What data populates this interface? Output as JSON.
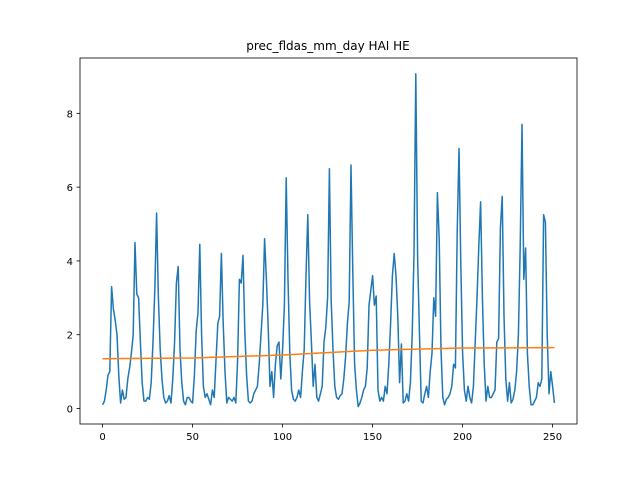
{
  "chart_data": {
    "type": "line",
    "title": "prec_fldas_mm_day HAI HE",
    "xlim": [
      -12.55,
      263.55
    ],
    "xticks": [
      0,
      50,
      100,
      150,
      200,
      250
    ],
    "ylim": [
      -0.42,
      9.5
    ],
    "yticks": [
      0,
      2,
      4,
      6,
      8
    ],
    "grid": false,
    "series": [
      {
        "color": "#1f77b4",
        "x": [
          0,
          1,
          2,
          3,
          4,
          5,
          6,
          7,
          8,
          9,
          10,
          11,
          12,
          13,
          14,
          15,
          16,
          17,
          18,
          19,
          20,
          21,
          22,
          23,
          24,
          25,
          26,
          27,
          28,
          29,
          30,
          31,
          32,
          33,
          34,
          35,
          36,
          37,
          38,
          39,
          40,
          41,
          42,
          43,
          44,
          45,
          46,
          47,
          48,
          49,
          50,
          51,
          52,
          53,
          54,
          55,
          56,
          57,
          58,
          59,
          60,
          61,
          62,
          63,
          64,
          65,
          66,
          67,
          68,
          69,
          70,
          71,
          72,
          73,
          74,
          75,
          76,
          77,
          78,
          79,
          80,
          81,
          82,
          83,
          84,
          85,
          86,
          87,
          88,
          89,
          90,
          91,
          92,
          93,
          94,
          95,
          96,
          97,
          98,
          99,
          100,
          101,
          102,
          103,
          104,
          105,
          106,
          107,
          108,
          109,
          110,
          111,
          112,
          113,
          114,
          115,
          116,
          117,
          118,
          119,
          120,
          121,
          122,
          123,
          124,
          125,
          126,
          127,
          128,
          129,
          130,
          131,
          132,
          133,
          134,
          135,
          136,
          137,
          138,
          139,
          140,
          141,
          142,
          143,
          144,
          145,
          146,
          147,
          148,
          149,
          150,
          151,
          152,
          153,
          154,
          155,
          156,
          157,
          158,
          159,
          160,
          161,
          162,
          163,
          164,
          165,
          166,
          167,
          168,
          169,
          170,
          171,
          172,
          173,
          174,
          175,
          176,
          177,
          178,
          179,
          180,
          181,
          182,
          183,
          184,
          185,
          186,
          187,
          188,
          189,
          190,
          191,
          192,
          193,
          194,
          195,
          196,
          197,
          198,
          199,
          200,
          201,
          202,
          203,
          204,
          205,
          206,
          207,
          208,
          209,
          210,
          211,
          212,
          213,
          214,
          215,
          216,
          217,
          218,
          219,
          220,
          221,
          222,
          223,
          224,
          225,
          226,
          227,
          228,
          229,
          230,
          231,
          232,
          233,
          234,
          235,
          236,
          237,
          238,
          239,
          240,
          241,
          242,
          243,
          244,
          245,
          246,
          247,
          248,
          249,
          250,
          251
        ],
        "values": [
          0.1,
          0.2,
          0.5,
          0.9,
          1.0,
          3.3,
          2.7,
          2.4,
          2.0,
          0.9,
          0.15,
          0.5,
          0.25,
          0.3,
          0.8,
          1.1,
          1.5,
          2.0,
          4.5,
          3.1,
          3.0,
          1.8,
          0.7,
          0.2,
          0.2,
          0.3,
          0.25,
          0.7,
          1.8,
          3.2,
          5.3,
          3.0,
          1.6,
          0.8,
          0.3,
          0.15,
          0.2,
          0.35,
          0.15,
          0.8,
          1.8,
          3.4,
          3.85,
          1.6,
          0.7,
          0.2,
          0.1,
          0.3,
          0.3,
          0.2,
          0.15,
          0.9,
          2.1,
          2.6,
          4.45,
          2.0,
          0.6,
          0.3,
          0.4,
          0.25,
          0.1,
          0.5,
          0.3,
          1.3,
          2.3,
          2.5,
          4.2,
          2.3,
          1.0,
          0.15,
          0.3,
          0.25,
          0.2,
          0.3,
          0.15,
          1.3,
          3.5,
          3.4,
          4.15,
          2.1,
          0.9,
          0.2,
          0.15,
          0.2,
          0.4,
          0.5,
          0.6,
          1.2,
          2.0,
          2.8,
          4.6,
          3.5,
          2.2,
          0.6,
          1.0,
          0.3,
          1.2,
          1.7,
          1.8,
          0.8,
          1.6,
          2.8,
          6.25,
          3.5,
          1.5,
          0.5,
          0.25,
          0.2,
          0.3,
          0.5,
          0.3,
          1.0,
          1.6,
          3.6,
          5.25,
          2.9,
          1.8,
          0.6,
          1.2,
          0.3,
          0.2,
          0.4,
          0.6,
          1.8,
          2.2,
          3.0,
          6.5,
          2.9,
          1.6,
          0.6,
          0.3,
          0.25,
          0.35,
          0.4,
          0.8,
          1.4,
          2.3,
          2.9,
          6.6,
          3.7,
          1.2,
          0.5,
          0.05,
          0.15,
          0.3,
          0.5,
          0.6,
          1.1,
          2.8,
          3.2,
          3.6,
          2.8,
          3.05,
          0.5,
          0.2,
          0.3,
          0.2,
          0.6,
          0.4,
          1.2,
          2.3,
          3.6,
          4.2,
          3.6,
          2.5,
          0.7,
          1.75,
          0.15,
          0.2,
          0.4,
          0.2,
          0.7,
          2.0,
          4.2,
          9.07,
          4.1,
          2.1,
          0.2,
          0.15,
          0.4,
          0.6,
          0.3,
          1.0,
          1.5,
          3.0,
          2.5,
          5.85,
          4.6,
          1.6,
          0.3,
          0.1,
          0.25,
          0.3,
          0.4,
          0.6,
          1.2,
          1.1,
          4.8,
          7.05,
          3.9,
          1.5,
          0.5,
          0.2,
          0.6,
          0.3,
          0.15,
          0.6,
          1.8,
          3.0,
          4.4,
          5.6,
          3.0,
          1.2,
          0.2,
          0.6,
          0.3,
          0.3,
          0.4,
          0.5,
          1.8,
          1.9,
          4.9,
          5.75,
          2.5,
          0.8,
          0.2,
          0.7,
          0.15,
          0.25,
          0.5,
          1.0,
          2.0,
          4.4,
          7.7,
          3.5,
          4.35,
          1.5,
          0.6,
          0.1,
          0.1,
          0.2,
          0.3,
          0.7,
          0.6,
          0.8,
          5.25,
          5.05,
          2.0,
          0.4,
          1.0,
          0.6,
          0.15
        ]
      },
      {
        "color": "#ff7f0e",
        "x": [
          0,
          50,
          100,
          150,
          200,
          251
        ],
        "values": [
          1.35,
          1.37,
          1.45,
          1.58,
          1.64,
          1.65
        ]
      }
    ]
  }
}
